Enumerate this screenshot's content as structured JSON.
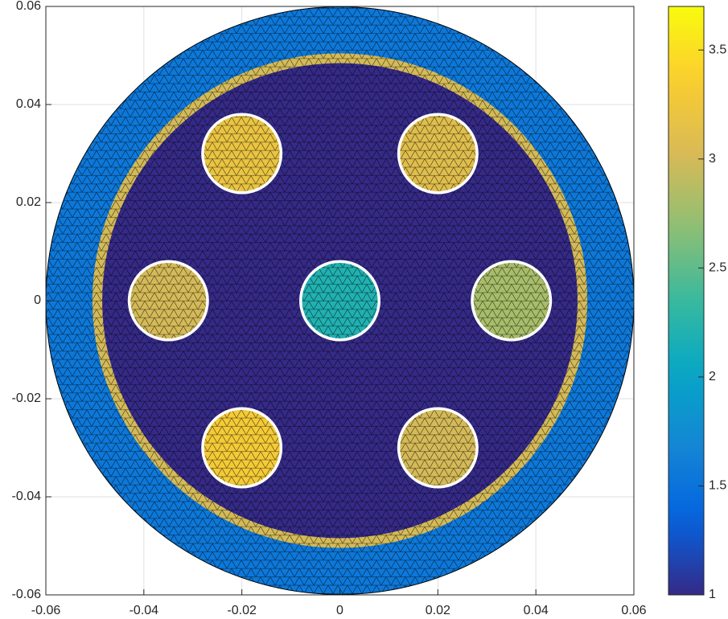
{
  "chart_data": {
    "type": "fem",
    "xlim": [
      -0.06,
      0.06
    ],
    "ylim": [
      -0.06,
      0.06
    ],
    "xticks": [
      -0.06,
      -0.04,
      -0.02,
      0,
      0.02,
      0.04,
      0.06
    ],
    "yticks": [
      -0.06,
      -0.04,
      -0.02,
      0,
      0.02,
      0.04,
      0.06
    ],
    "grid": true,
    "circles": {
      "x": [
        0,
        0,
        0,
        -0.02,
        0.02,
        -0.035,
        0,
        0.035,
        -0.02,
        0.02
      ],
      "y": [
        0,
        0,
        0,
        0.03,
        0.03,
        0,
        0,
        0,
        -0.03,
        -0.03
      ],
      "r": [
        0.06,
        0.0505,
        0.0485,
        0.008,
        0.008,
        0.008,
        0.008,
        0.008,
        0.008,
        0.008
      ],
      "values": [
        1.55,
        3.0,
        1.0,
        3.2,
        3.1,
        3.0,
        2.2,
        2.8,
        3.3,
        3.0
      ],
      "outline": [
        false,
        false,
        false,
        true,
        true,
        true,
        true,
        true,
        true,
        true
      ]
    },
    "outline_color": "#ffffff",
    "colorbar": {
      "clim": [
        1,
        3.7
      ],
      "ticks": [
        1,
        1.5,
        2,
        2.5,
        3,
        3.5
      ]
    }
  }
}
